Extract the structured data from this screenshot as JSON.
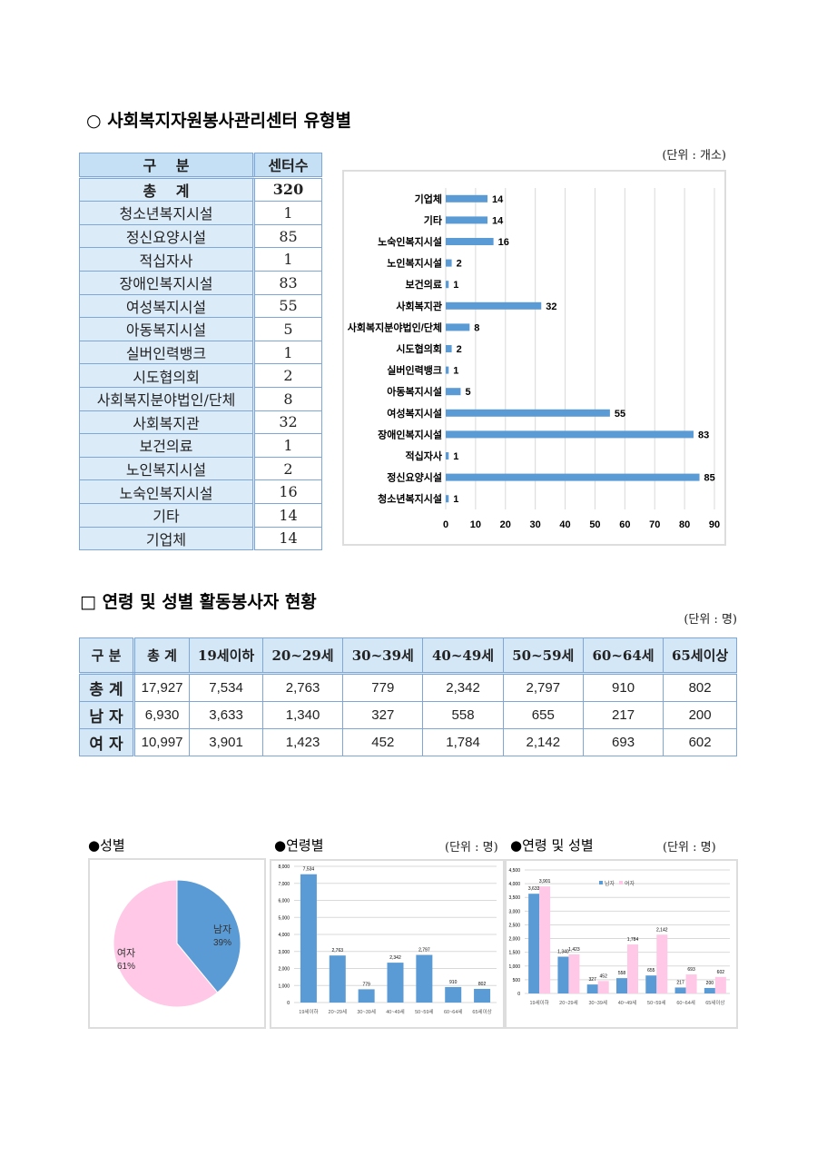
{
  "section1": {
    "title": "○ 사회복지자원봉사관리센터 유형별",
    "unit": "(단위 : 개소)",
    "table": {
      "headers": [
        "구　 분",
        "센터수"
      ],
      "total": {
        "label": "총　 계",
        "value": "320"
      },
      "rows": [
        [
          "청소년복지시설",
          "1"
        ],
        [
          "정신요양시설",
          "85"
        ],
        [
          "적십자사",
          "1"
        ],
        [
          "장애인복지시설",
          "83"
        ],
        [
          "여성복지시설",
          "55"
        ],
        [
          "아동복지시설",
          "5"
        ],
        [
          "실버인력뱅크",
          "1"
        ],
        [
          "시도협의회",
          "2"
        ],
        [
          "사회복지분야법인/단체",
          "8"
        ],
        [
          "사회복지관",
          "32"
        ],
        [
          "보건의료",
          "1"
        ],
        [
          "노인복지시설",
          "2"
        ],
        [
          "노숙인복지시설",
          "16"
        ],
        [
          "기타",
          "14"
        ],
        [
          "기업체",
          "14"
        ]
      ]
    }
  },
  "section2": {
    "title": "□ 연령 및 성별 활동봉사자 현황",
    "unit": "(단위 : 명)",
    "table": {
      "headers": [
        "구 분",
        "총 계",
        "19세이하",
        "20~29세",
        "30~39세",
        "40~49세",
        "50~59세",
        "60~64세",
        "65세이상"
      ],
      "rows": [
        [
          "총 계",
          "17,927",
          "7,534",
          "2,763",
          "779",
          "2,342",
          "2,797",
          "910",
          "802"
        ],
        [
          "남 자",
          "6,930",
          "3,633",
          "1,340",
          "327",
          "558",
          "655",
          "217",
          "200"
        ],
        [
          "여 자",
          "10,997",
          "3,901",
          "1,423",
          "452",
          "1,784",
          "2,142",
          "693",
          "602"
        ]
      ]
    }
  },
  "bottom": {
    "gender_label": "●성별",
    "age_label": "●연령별",
    "age_unit": "(단위 : 명)",
    "agegender_label": "●연령 및 성별",
    "agegender_unit": "(단위 : 명)"
  },
  "chart_data": [
    {
      "type": "bar",
      "orientation": "horizontal",
      "categories": [
        "기업체",
        "기타",
        "노숙인복지시설",
        "노인복지시설",
        "보건의료",
        "사회복지관",
        "사회복지분야법인/단체",
        "시도협의회",
        "실버인력뱅크",
        "아동복지시설",
        "여성복지시설",
        "장애인복지시설",
        "적십자사",
        "정신요양시설",
        "청소년복지시설"
      ],
      "values": [
        14,
        14,
        16,
        2,
        1,
        32,
        8,
        2,
        1,
        5,
        55,
        83,
        1,
        85,
        1
      ],
      "xlim": [
        0,
        90
      ],
      "xticks": [
        0,
        10,
        20,
        30,
        40,
        50,
        60,
        70,
        80,
        90
      ],
      "grid": true,
      "color": "#5b9bd5"
    },
    {
      "type": "pie",
      "labels": [
        "남자",
        "여자"
      ],
      "values": [
        39,
        61
      ],
      "value_labels": [
        "39%",
        "61%"
      ],
      "colors": [
        "#5b9bd5",
        "#ffc8e6"
      ]
    },
    {
      "type": "bar",
      "categories": [
        "19세이하",
        "20~29세",
        "30~39세",
        "40~49세",
        "50~59세",
        "60~64세",
        "65세이상"
      ],
      "values": [
        7534,
        2763,
        779,
        2342,
        2797,
        910,
        802
      ],
      "value_labels": [
        "7,534",
        "2,763",
        "779",
        "2,342",
        "2,797",
        "910",
        "802"
      ],
      "ylim": [
        0,
        8000
      ],
      "yticks": [
        "0",
        "1,000",
        "2,000",
        "3,000",
        "4,000",
        "5,000",
        "6,000",
        "7,000",
        "8,000"
      ],
      "grid": true,
      "color": "#5b9bd5"
    },
    {
      "type": "bar",
      "categories": [
        "19세이하",
        "20~29세",
        "30~39세",
        "40~49세",
        "50~59세",
        "60~64세",
        "65세이상"
      ],
      "series": [
        {
          "name": "남자",
          "values": [
            3633,
            1340,
            327,
            558,
            655,
            217,
            200
          ],
          "value_labels": [
            "3,633",
            "1,340",
            "327",
            "558",
            "655",
            "217",
            "200"
          ],
          "color": "#5b9bd5"
        },
        {
          "name": "여자",
          "values": [
            3901,
            1423,
            452,
            1784,
            2142,
            693,
            602
          ],
          "value_labels": [
            "3,901",
            "1,423",
            "452",
            "1,784",
            "2,142",
            "693",
            "602"
          ],
          "color": "#ffc8e6"
        }
      ],
      "ylim": [
        0,
        4500
      ],
      "yticks": [
        "0",
        "500",
        "1,000",
        "1,500",
        "2,000",
        "2,500",
        "3,000",
        "3,500",
        "4,000",
        "4,500"
      ],
      "grid": true,
      "legend": "top-center"
    }
  ]
}
